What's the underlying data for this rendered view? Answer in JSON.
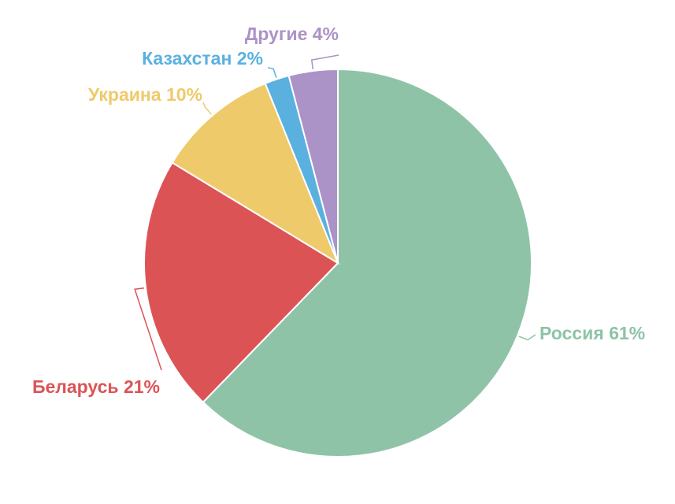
{
  "chart_data": {
    "type": "pie",
    "categories": [
      "Россия",
      "Беларусь",
      "Украина",
      "Казахстан",
      "Другие"
    ],
    "values": [
      61,
      21,
      10,
      2,
      4
    ],
    "value_labels": [
      "61%",
      "21%",
      "10%",
      "2%",
      "4%"
    ],
    "colors": [
      "#8ec3a7",
      "#dc5356",
      "#eeca6a",
      "#5ab1e0",
      "#ab92c7"
    ]
  }
}
